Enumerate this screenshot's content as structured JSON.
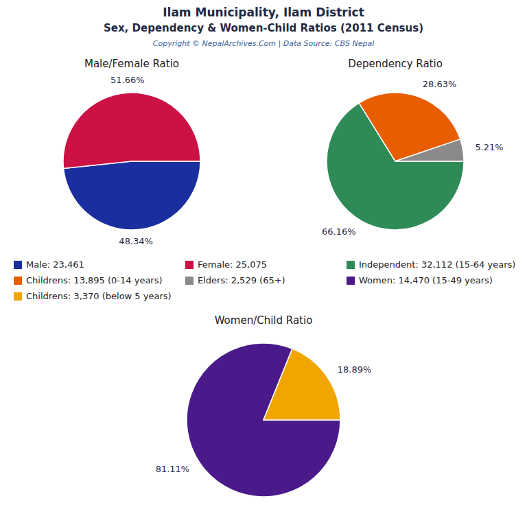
{
  "title": "Ilam Municipality, Ilam District",
  "subtitle": "Sex, Dependency & Women-Child Ratios (2011 Census)",
  "annotations": [
    "Copyright © NepalArchives.Com | Data Source: CBS Nepal"
  ],
  "chart_data": [
    {
      "type": "pie",
      "title": "Male/Female Ratio",
      "categories": [
        "Male: 23,461",
        "Female: 25,075"
      ],
      "values": [
        48.34,
        51.66
      ],
      "value_labels": [
        "48.34%",
        "51.66%"
      ],
      "colors": [
        "#1a2e9e",
        "#cc1144"
      ],
      "data_labels": true
    },
    {
      "type": "pie",
      "title": "Dependency Ratio",
      "categories": [
        "Independent: 32,112 (15-64 years)",
        "Childrens: 13,895 (0-14 years)",
        "Elders: 2,529 (65+)"
      ],
      "values": [
        66.16,
        28.63,
        5.21
      ],
      "value_labels": [
        "66.16%",
        "28.63%",
        "5.21%"
      ],
      "colors": [
        "#2e8b57",
        "#e85d00",
        "#8a8a8a"
      ],
      "data_labels": true
    },
    {
      "type": "pie",
      "title": "Women/Child Ratio",
      "categories": [
        "Women: 14,470 (15-49 years)",
        "Childrens: 3,370 (below 5 years)"
      ],
      "values": [
        81.11,
        18.89
      ],
      "value_labels": [
        "81.11%",
        "18.89%"
      ],
      "colors": [
        "#4a1a8a",
        "#f0a500"
      ],
      "data_labels": true
    }
  ]
}
